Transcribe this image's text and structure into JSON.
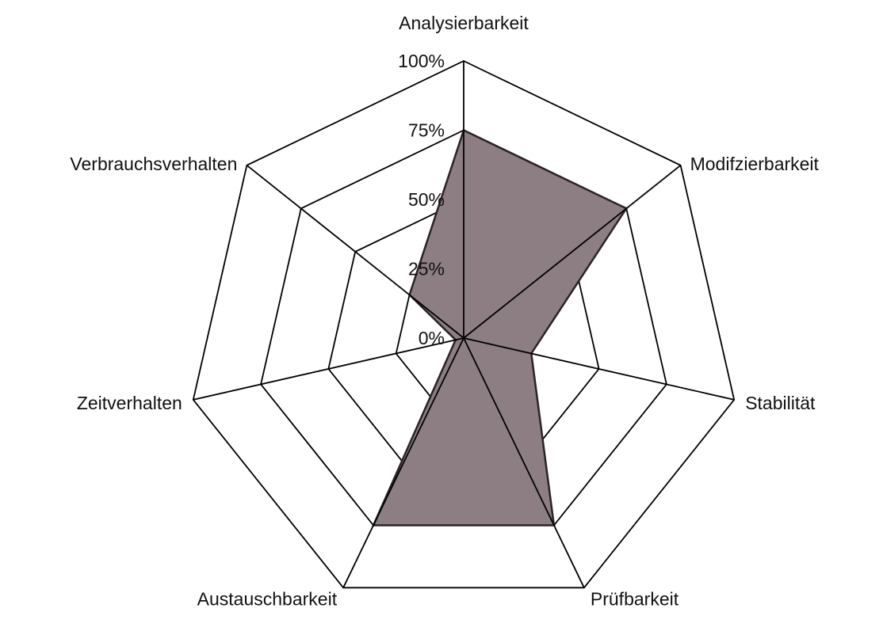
{
  "chart_data": {
    "type": "radar",
    "title": "",
    "axes": [
      "Analysierbarkeit",
      "Modifzierbarkeit",
      "Stabilität",
      "Prüfbarkeit",
      "Austauschbarkeit",
      "Zeitverhalten",
      "Verbrauchsverhalten"
    ],
    "tick_labels": [
      "0%",
      "25%",
      "50%",
      "75%",
      "100%"
    ],
    "ticks": [
      0,
      25,
      50,
      75,
      100
    ],
    "range": [
      0,
      100
    ],
    "series": [
      {
        "values": [
          75,
          75,
          25,
          75,
          75,
          3,
          25
        ]
      }
    ],
    "colors": {
      "fill": "#8c7e82",
      "grid": "#000000",
      "background": "#ffffff"
    },
    "grid": true,
    "legend": "none"
  }
}
